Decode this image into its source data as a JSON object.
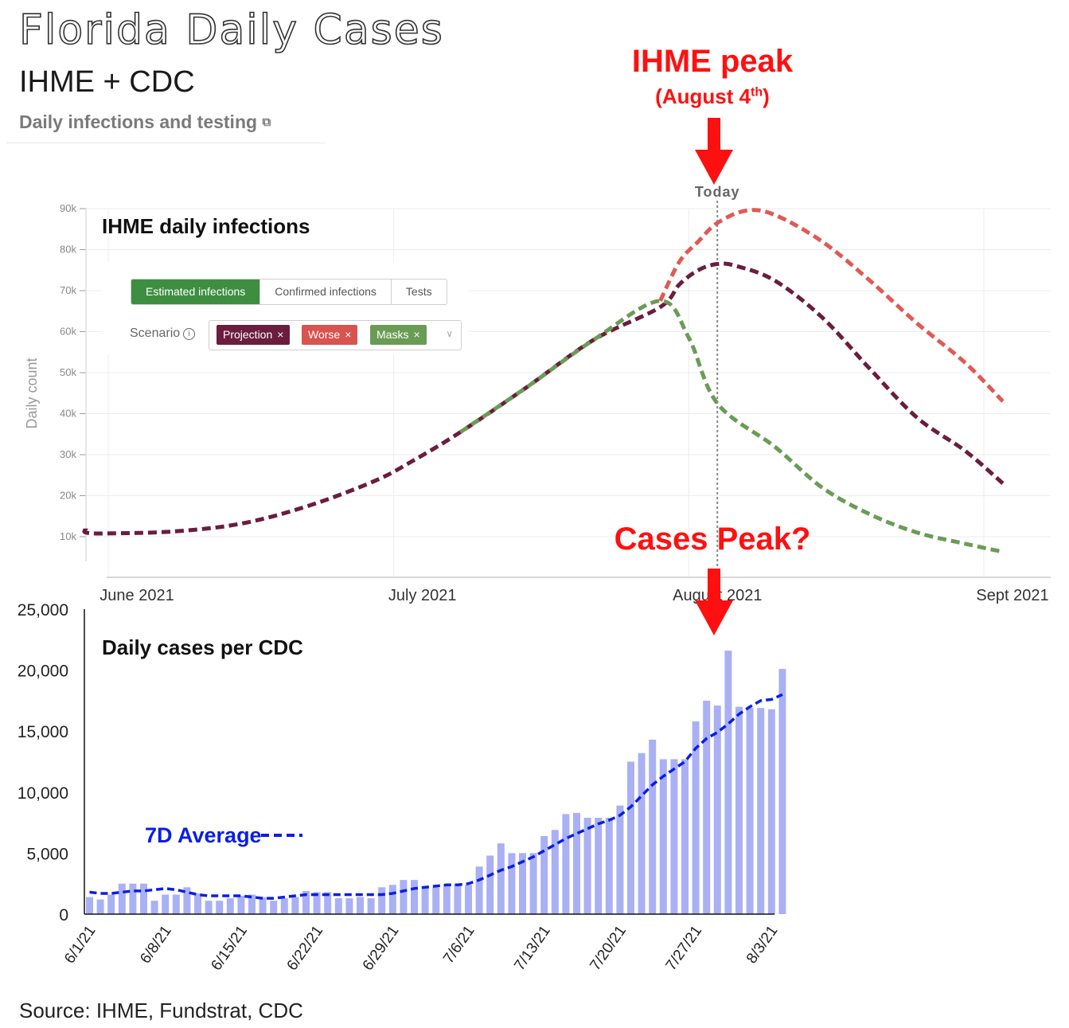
{
  "header": {
    "title": "Florida Daily Cases",
    "subtitle": "IHME + CDC",
    "section_link": "Daily infections and testing",
    "section_link_icon": "external-link-icon"
  },
  "annotations": {
    "ihme_peak": "IHME peak",
    "ihme_peak_date_prefix": "(August 4",
    "ihme_peak_date_suffix": "th",
    "ihme_peak_date_close": ")",
    "cases_peak": "Cases Peak?",
    "today_label": "Today",
    "arrow_color": "#ff1010"
  },
  "controls": {
    "tabs": [
      "Estimated infections",
      "Confirmed infections",
      "Tests"
    ],
    "active_tab": "Estimated infections",
    "scenario_label": "Scenario",
    "scenario_chips": [
      "Projection",
      "Worse",
      "Masks"
    ],
    "chip_close": "×",
    "caret": "∨"
  },
  "chart_data": [
    {
      "type": "line",
      "title": "IHME daily infections",
      "ylabel": "Daily count",
      "xlabel": "",
      "x_axis_type": "date",
      "xlim": [
        "2021-05-26",
        "2021-09-03"
      ],
      "x_ticks": [
        {
          "date": "2021-06-01",
          "label": "June 2021"
        },
        {
          "date": "2021-07-01",
          "label": "July 2021"
        },
        {
          "date": "2021-08-01",
          "label": "August 2021"
        },
        {
          "date": "2021-09-01",
          "label": "Sept 2021"
        }
      ],
      "ylim": [
        5000,
        90000
      ],
      "y_ticks": [
        10000,
        20000,
        30000,
        40000,
        50000,
        60000,
        70000,
        80000,
        90000
      ],
      "y_tick_labels": [
        "10k",
        "20k",
        "30k",
        "40k",
        "50k",
        "60k",
        "70k",
        "80k",
        "90k"
      ],
      "today": "2021-08-04",
      "grid": true,
      "series": [
        {
          "name": "Projection",
          "color": "#6b1d3e",
          "points": [
            [
              "2021-05-26",
              12000
            ],
            [
              "2021-05-27",
              11000
            ],
            [
              "2021-06-01",
              10800
            ],
            [
              "2021-06-08",
              11300
            ],
            [
              "2021-06-15",
              13200
            ],
            [
              "2021-06-22",
              17500
            ],
            [
              "2021-06-29",
              23600
            ],
            [
              "2021-07-03",
              28500
            ],
            [
              "2021-07-08",
              35500
            ],
            [
              "2021-07-15",
              46500
            ],
            [
              "2021-07-22",
              58000
            ],
            [
              "2021-07-29",
              66000
            ],
            [
              "2021-07-31",
              71500
            ],
            [
              "2021-08-02",
              75000
            ],
            [
              "2021-08-04",
              76500
            ],
            [
              "2021-08-06",
              76000
            ],
            [
              "2021-08-10",
              72500
            ],
            [
              "2021-08-15",
              63500
            ],
            [
              "2021-08-20",
              51000
            ],
            [
              "2021-08-25",
              39000
            ],
            [
              "2021-08-30",
              31000
            ],
            [
              "2021-09-03",
              23000
            ]
          ]
        },
        {
          "name": "Worse",
          "color": "#e05a54",
          "points": [
            [
              "2021-07-29",
              67500
            ],
            [
              "2021-07-31",
              77000
            ],
            [
              "2021-08-02",
              82000
            ],
            [
              "2021-08-04",
              86500
            ],
            [
              "2021-08-07",
              89500
            ],
            [
              "2021-08-10",
              88500
            ],
            [
              "2021-08-15",
              82000
            ],
            [
              "2021-08-20",
              72500
            ],
            [
              "2021-08-25",
              62000
            ],
            [
              "2021-08-30",
              52500
            ],
            [
              "2021-09-03",
              43000
            ]
          ]
        },
        {
          "name": "Masks",
          "color": "#6a9c55",
          "points": [
            [
              "2021-07-08",
              35500
            ],
            [
              "2021-07-15",
              46500
            ],
            [
              "2021-07-22",
              58000
            ],
            [
              "2021-07-29",
              67500
            ],
            [
              "2021-08-01",
              58500
            ],
            [
              "2021-08-04",
              42500
            ],
            [
              "2021-08-10",
              32000
            ],
            [
              "2021-08-15",
              22000
            ],
            [
              "2021-08-20",
              15500
            ],
            [
              "2021-08-25",
              11000
            ],
            [
              "2021-08-30",
              8300
            ],
            [
              "2021-09-03",
              6300
            ]
          ]
        }
      ]
    },
    {
      "type": "bar",
      "title": "Daily cases per CDC",
      "xlabel": "",
      "ylabel": "",
      "ylim": [
        0,
        25000
      ],
      "y_ticks": [
        0,
        5000,
        10000,
        15000,
        20000,
        25000
      ],
      "y_tick_labels": [
        "0",
        "5,000",
        "10,000",
        "15,000",
        "20,000",
        "25,000"
      ],
      "x_tick_labels": [
        "6/1/21",
        "6/8/21",
        "6/15/21",
        "6/22/21",
        "6/29/21",
        "7/6/21",
        "7/13/21",
        "7/20/21",
        "7/27/21",
        "8/3/21"
      ],
      "x_tick_every": 7,
      "bar_color": "#aab0f4",
      "line_color": "#0a1ee6",
      "legend": "7D Average",
      "grid": false,
      "values": [
        1400,
        1200,
        1600,
        2500,
        2500,
        2500,
        1100,
        1600,
        1600,
        2200,
        1700,
        1100,
        1100,
        1300,
        1500,
        1600,
        1400,
        1100,
        1300,
        1400,
        1900,
        1800,
        1800,
        1300,
        1300,
        1400,
        1300,
        2200,
        2400,
        2800,
        2800,
        2300,
        2200,
        2400,
        2500,
        2400,
        3900,
        4800,
        5800,
        5000,
        5000,
        5000,
        6400,
        6900,
        8200,
        8300,
        7900,
        7900,
        7900,
        8900,
        12500,
        13200,
        14300,
        12700,
        12700,
        12700,
        15800,
        17500,
        17100,
        21600,
        17000,
        16900,
        16900,
        16800,
        20100
      ],
      "avg_7d": [
        1800,
        1700,
        1700,
        1800,
        1900,
        1900,
        2000,
        2100,
        2000,
        1800,
        1600,
        1500,
        1500,
        1500,
        1500,
        1400,
        1300,
        1300,
        1400,
        1500,
        1600,
        1600,
        1600,
        1600,
        1600,
        1600,
        1600,
        1600,
        1700,
        1900,
        2100,
        2200,
        2300,
        2400,
        2400,
        2500,
        2800,
        3200,
        3600,
        3900,
        4300,
        4700,
        5200,
        5700,
        6200,
        6600,
        7000,
        7400,
        7700,
        8100,
        8800,
        9700,
        10600,
        11300,
        11900,
        12500,
        13600,
        14400,
        14900,
        15600,
        16400,
        17000,
        17500,
        17600,
        18000
      ]
    }
  ],
  "source": "Source: IHME, Fundstrat, CDC"
}
